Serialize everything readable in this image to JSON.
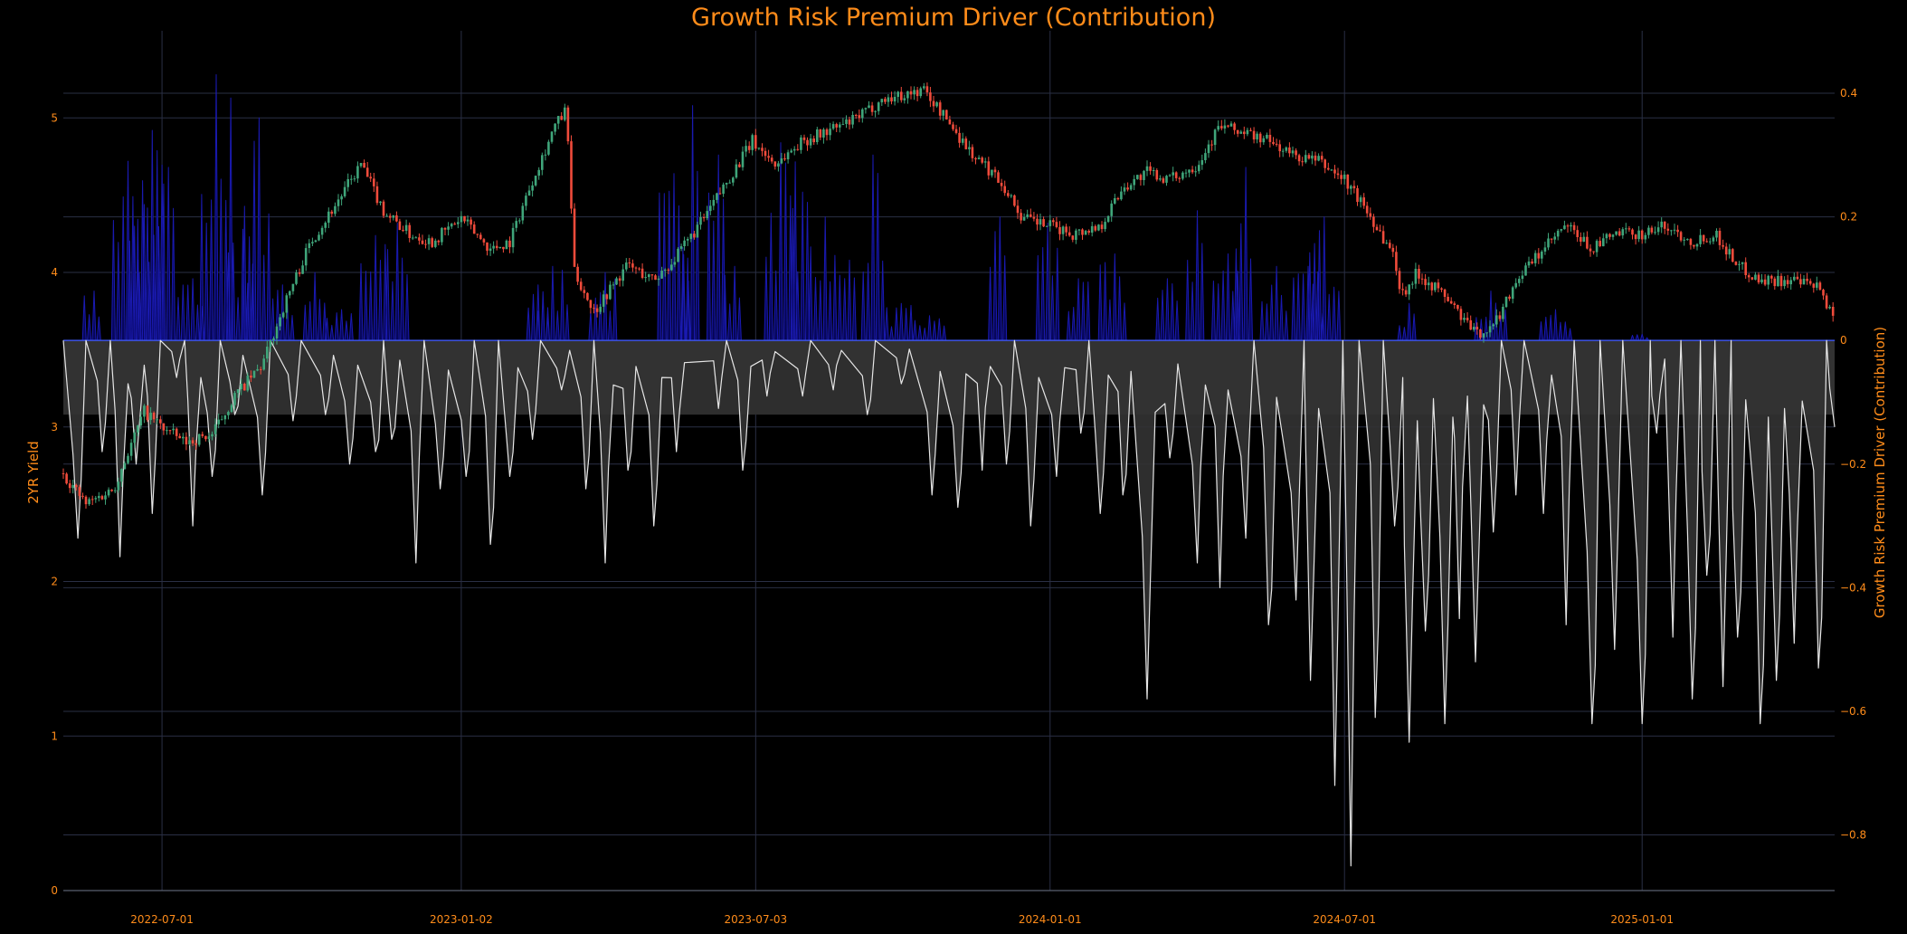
{
  "chart_data": {
    "type": "line",
    "title": "Growth Risk Premium Driver (Contribution)",
    "ylabel_left": "2YR Yield",
    "ylabel_right": "Growth Risk Premium Driver (Contribution)",
    "x_range": [
      "2022-05-01",
      "2025-04-30"
    ],
    "x_ticks": [
      "2022-07-01",
      "2023-01-02",
      "2023-07-03",
      "2024-01-01",
      "2024-07-01",
      "2025-01-01"
    ],
    "ylim_left": [
      0,
      5.4
    ],
    "yticks_left": [
      "0",
      "1",
      "2",
      "3",
      "4",
      "5"
    ],
    "ylim_right": [
      -0.89,
      0.46
    ],
    "yticks_right": [
      "0.4",
      "0.2",
      "0",
      "−0.2",
      "−0.4",
      "−0.6",
      "−0.8"
    ],
    "grid": true,
    "colors": {
      "up": "#3fa57a",
      "down": "#f04b3b",
      "positive_area": "#0a0a8c",
      "negative_line": "#e6e6e6",
      "negative_fill": "#333333",
      "zero_line": "#3b4fd6",
      "text": "#ff8c1a"
    },
    "series": [
      {
        "kind": "candlestick",
        "axis": "left",
        "path": [
          [
            "2022-05-01",
            2.7
          ],
          [
            "2022-05-15",
            2.5
          ],
          [
            "2022-06-01",
            2.6
          ],
          [
            "2022-06-20",
            3.1
          ],
          [
            "2022-07-01",
            3.0
          ],
          [
            "2022-07-15",
            2.9
          ],
          [
            "2022-08-01",
            2.95
          ],
          [
            "2022-08-15",
            3.2
          ],
          [
            "2022-09-01",
            3.4
          ],
          [
            "2022-09-15",
            3.8
          ],
          [
            "2022-10-01",
            4.2
          ],
          [
            "2022-10-20",
            4.5
          ],
          [
            "2022-11-01",
            4.7
          ],
          [
            "2022-11-15",
            4.4
          ],
          [
            "2022-12-01",
            4.25
          ],
          [
            "2022-12-15",
            4.2
          ],
          [
            "2023-01-02",
            4.35
          ],
          [
            "2023-01-20",
            4.15
          ],
          [
            "2023-02-01",
            4.2
          ],
          [
            "2023-02-15",
            4.6
          ],
          [
            "2023-03-01",
            4.95
          ],
          [
            "2023-03-08",
            5.05
          ],
          [
            "2023-03-13",
            4.0
          ],
          [
            "2023-03-25",
            3.75
          ],
          [
            "2023-04-15",
            4.05
          ],
          [
            "2023-05-01",
            3.95
          ],
          [
            "2023-05-15",
            4.1
          ],
          [
            "2023-06-01",
            4.35
          ],
          [
            "2023-07-01",
            4.85
          ],
          [
            "2023-07-15",
            4.7
          ],
          [
            "2023-08-01",
            4.85
          ],
          [
            "2023-09-01",
            4.98
          ],
          [
            "2023-09-20",
            5.12
          ],
          [
            "2023-10-15",
            5.18
          ],
          [
            "2023-11-01",
            4.95
          ],
          [
            "2023-11-15",
            4.75
          ],
          [
            "2023-12-01",
            4.6
          ],
          [
            "2023-12-15",
            4.35
          ],
          [
            "2024-01-01",
            4.3
          ],
          [
            "2024-01-15",
            4.25
          ],
          [
            "2024-02-01",
            4.3
          ],
          [
            "2024-02-15",
            4.55
          ],
          [
            "2024-03-01",
            4.65
          ],
          [
            "2024-03-15",
            4.6
          ],
          [
            "2024-04-01",
            4.7
          ],
          [
            "2024-04-15",
            4.95
          ],
          [
            "2024-05-01",
            4.9
          ],
          [
            "2024-05-15",
            4.85
          ],
          [
            "2024-06-01",
            4.75
          ],
          [
            "2024-06-15",
            4.72
          ],
          [
            "2024-07-01",
            4.6
          ],
          [
            "2024-07-15",
            4.4
          ],
          [
            "2024-08-01",
            4.1
          ],
          [
            "2024-08-05",
            3.85
          ],
          [
            "2024-08-15",
            4.0
          ],
          [
            "2024-09-01",
            3.85
          ],
          [
            "2024-09-20",
            3.6
          ],
          [
            "2024-10-01",
            3.65
          ],
          [
            "2024-10-15",
            3.95
          ],
          [
            "2024-11-01",
            4.15
          ],
          [
            "2024-11-15",
            4.3
          ],
          [
            "2024-12-01",
            4.15
          ],
          [
            "2024-12-15",
            4.25
          ],
          [
            "2025-01-01",
            4.25
          ],
          [
            "2025-01-15",
            4.3
          ],
          [
            "2025-02-01",
            4.2
          ],
          [
            "2025-02-15",
            4.25
          ],
          [
            "2025-03-01",
            4.05
          ],
          [
            "2025-03-15",
            3.95
          ],
          [
            "2025-04-01",
            3.95
          ],
          [
            "2025-04-20",
            3.9
          ],
          [
            "2025-04-30",
            3.7
          ]
        ]
      },
      {
        "kind": "positive-contribution-area",
        "axis": "right",
        "peaks": [
          [
            "2022-05-20",
            0.08
          ],
          [
            "2022-06-10",
            0.29
          ],
          [
            "2022-06-20",
            0.22
          ],
          [
            "2022-06-25",
            0.34
          ],
          [
            "2022-07-05",
            0.28
          ],
          [
            "2022-07-20",
            0.1
          ],
          [
            "2022-08-05",
            0.43
          ],
          [
            "2022-08-20",
            0.18
          ],
          [
            "2022-08-30",
            0.36
          ],
          [
            "2022-09-15",
            0.09
          ],
          [
            "2022-10-05",
            0.11
          ],
          [
            "2022-10-20",
            0.05
          ],
          [
            "2022-11-10",
            0.17
          ],
          [
            "2022-11-25",
            0.19
          ],
          [
            "2023-02-20",
            0.09
          ],
          [
            "2023-03-01",
            0.12
          ],
          [
            "2023-04-01",
            0.11
          ],
          [
            "2023-05-15",
            0.27
          ],
          [
            "2023-05-25",
            0.38
          ],
          [
            "2023-06-10",
            0.3
          ],
          [
            "2023-06-20",
            0.12
          ],
          [
            "2023-07-20",
            0.32
          ],
          [
            "2023-08-01",
            0.24
          ],
          [
            "2023-08-15",
            0.2
          ],
          [
            "2023-08-30",
            0.13
          ],
          [
            "2023-09-15",
            0.3
          ],
          [
            "2023-10-01",
            0.06
          ],
          [
            "2023-10-20",
            0.04
          ],
          [
            "2023-12-01",
            0.2
          ],
          [
            "2024-01-01",
            0.19
          ],
          [
            "2024-01-20",
            0.1
          ],
          [
            "2024-02-10",
            0.14
          ],
          [
            "2024-03-15",
            0.1
          ],
          [
            "2024-04-01",
            0.21
          ],
          [
            "2024-04-20",
            0.14
          ],
          [
            "2024-05-01",
            0.28
          ],
          [
            "2024-05-20",
            0.12
          ],
          [
            "2024-06-10",
            0.12
          ],
          [
            "2024-06-20",
            0.2
          ],
          [
            "2024-08-10",
            0.06
          ],
          [
            "2024-10-01",
            0.08
          ],
          [
            "2024-11-10",
            0.05
          ],
          [
            "2025-01-01",
            0.01
          ]
        ]
      },
      {
        "kind": "negative-contribution-line",
        "axis": "right",
        "troughs": [
          [
            "2022-05-10",
            -0.32
          ],
          [
            "2022-05-25",
            -0.18
          ],
          [
            "2022-06-05",
            -0.35
          ],
          [
            "2022-06-15",
            -0.2
          ],
          [
            "2022-06-25",
            -0.28
          ],
          [
            "2022-07-10",
            -0.06
          ],
          [
            "2022-07-20",
            -0.3
          ],
          [
            "2022-08-01",
            -0.22
          ],
          [
            "2022-08-15",
            -0.12
          ],
          [
            "2022-09-01",
            -0.25
          ],
          [
            "2022-09-20",
            -0.13
          ],
          [
            "2022-10-10",
            -0.12
          ],
          [
            "2022-10-25",
            -0.2
          ],
          [
            "2022-11-10",
            -0.18
          ],
          [
            "2022-11-20",
            -0.16
          ],
          [
            "2022-12-05",
            -0.36
          ],
          [
            "2022-12-20",
            -0.24
          ],
          [
            "2023-01-05",
            -0.22
          ],
          [
            "2023-01-20",
            -0.33
          ],
          [
            "2023-02-01",
            -0.22
          ],
          [
            "2023-02-15",
            -0.16
          ],
          [
            "2023-03-05",
            -0.08
          ],
          [
            "2023-03-20",
            -0.24
          ],
          [
            "2023-04-01",
            -0.36
          ],
          [
            "2023-04-15",
            -0.21
          ],
          [
            "2023-05-01",
            -0.3
          ],
          [
            "2023-05-15",
            -0.18
          ],
          [
            "2023-06-10",
            -0.11
          ],
          [
            "2023-06-25",
            -0.21
          ],
          [
            "2023-07-10",
            -0.09
          ],
          [
            "2023-08-01",
            -0.09
          ],
          [
            "2023-08-20",
            -0.08
          ],
          [
            "2023-09-10",
            -0.12
          ],
          [
            "2023-10-01",
            -0.07
          ],
          [
            "2023-10-20",
            -0.25
          ],
          [
            "2023-11-05",
            -0.27
          ],
          [
            "2023-11-20",
            -0.21
          ],
          [
            "2023-12-05",
            -0.2
          ],
          [
            "2023-12-20",
            -0.3
          ],
          [
            "2024-01-05",
            -0.22
          ],
          [
            "2024-01-20",
            -0.15
          ],
          [
            "2024-02-01",
            -0.28
          ],
          [
            "2024-02-15",
            -0.25
          ],
          [
            "2024-03-01",
            -0.58
          ],
          [
            "2024-03-15",
            -0.19
          ],
          [
            "2024-04-01",
            -0.36
          ],
          [
            "2024-04-15",
            -0.4
          ],
          [
            "2024-05-01",
            -0.32
          ],
          [
            "2024-05-15",
            -0.46
          ],
          [
            "2024-06-01",
            -0.42
          ],
          [
            "2024-06-10",
            -0.55
          ],
          [
            "2024-06-25",
            -0.72
          ],
          [
            "2024-07-05",
            -0.85
          ],
          [
            "2024-07-20",
            -0.61
          ],
          [
            "2024-08-01",
            -0.3
          ],
          [
            "2024-08-10",
            -0.65
          ],
          [
            "2024-08-20",
            -0.47
          ],
          [
            "2024-09-01",
            -0.62
          ],
          [
            "2024-09-10",
            -0.45
          ],
          [
            "2024-09-20",
            -0.52
          ],
          [
            "2024-10-01",
            -0.31
          ],
          [
            "2024-10-15",
            -0.25
          ],
          [
            "2024-11-01",
            -0.28
          ],
          [
            "2024-11-15",
            -0.46
          ],
          [
            "2024-12-01",
            -0.62
          ],
          [
            "2024-12-15",
            -0.5
          ],
          [
            "2025-01-01",
            -0.62
          ],
          [
            "2025-01-10",
            -0.15
          ],
          [
            "2025-01-20",
            -0.48
          ],
          [
            "2025-02-01",
            -0.58
          ],
          [
            "2025-02-10",
            -0.38
          ],
          [
            "2025-02-20",
            -0.56
          ],
          [
            "2025-03-01",
            -0.48
          ],
          [
            "2025-03-15",
            -0.62
          ],
          [
            "2025-03-25",
            -0.55
          ],
          [
            "2025-04-05",
            -0.49
          ],
          [
            "2025-04-20",
            -0.53
          ],
          [
            "2025-04-30",
            -0.14
          ]
        ]
      }
    ]
  }
}
